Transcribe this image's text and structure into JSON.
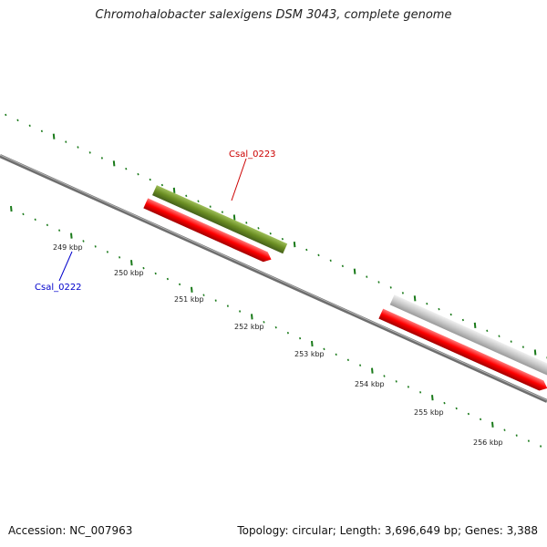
{
  "title": "Chromohalobacter salexigens DSM 3043, complete genome",
  "footer": {
    "accession": "Accession: NC_007963",
    "summary": "Topology: circular; Length: 3,696,649 bp; Genes: 3,388"
  },
  "ticks": [
    "249 kbp",
    "250 kbp",
    "251 kbp",
    "252 kbp",
    "253 kbp",
    "254 kbp",
    "255 kbp",
    "256 kbp"
  ],
  "gene_labels": {
    "top": "Csal_0223",
    "bottom": "Csal_0222"
  },
  "colors": {
    "backbone": "#7a7a7a",
    "tick_marks": "#1a7a1a",
    "forward_cds": "#0000ff",
    "reverse_cds": "#ff0000",
    "olive_feature": "#6b8e23",
    "navy_feature": "#3a3a8c",
    "grey_feature": "#c8c8c8",
    "label_top": "#cc0000",
    "label_bottom": "#0000cc"
  }
}
